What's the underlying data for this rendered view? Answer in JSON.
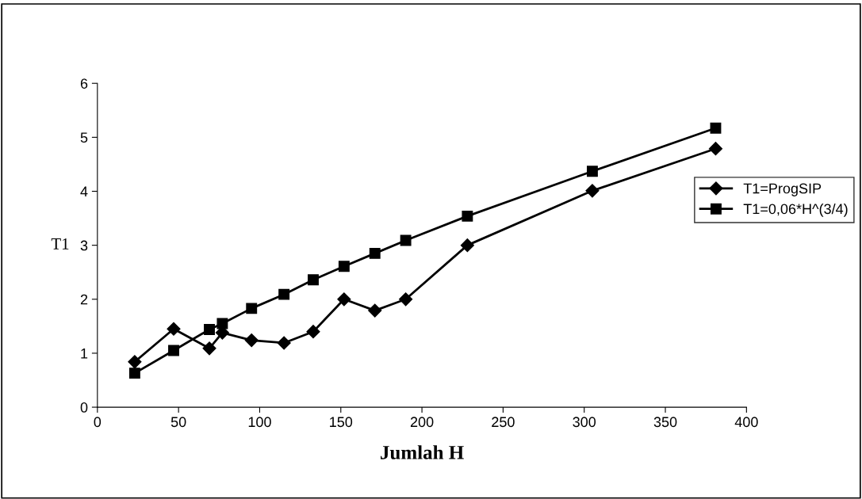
{
  "chart_data": {
    "type": "line",
    "xlabel": "Jumlah H",
    "ylabel": "T1",
    "x": [
      23,
      47,
      69,
      77,
      95,
      115,
      133,
      152,
      171,
      190,
      228,
      305,
      381
    ],
    "series": [
      {
        "name": "T1=ProgSIP",
        "color": "#000000",
        "marker": "diamond",
        "values": [
          0.84,
          1.45,
          1.09,
          1.38,
          1.24,
          1.19,
          1.4,
          2.0,
          1.79,
          2.0,
          3.0,
          4.01,
          4.79
        ]
      },
      {
        "name": "T1=0,06*H^(3/4)",
        "color": "#000000",
        "marker": "square",
        "values": [
          0.63,
          1.05,
          1.44,
          1.55,
          1.83,
          2.09,
          2.36,
          2.61,
          2.85,
          3.09,
          3.54,
          4.37,
          5.17
        ]
      }
    ],
    "xlim": [
      0,
      400
    ],
    "xticks": [
      0,
      50,
      100,
      150,
      200,
      250,
      300,
      350,
      400
    ],
    "ylim": [
      0,
      6
    ],
    "yticks": [
      0,
      1,
      2,
      3,
      4,
      5,
      6
    ],
    "grid": false,
    "legend": "right",
    "line_style": "solid"
  }
}
